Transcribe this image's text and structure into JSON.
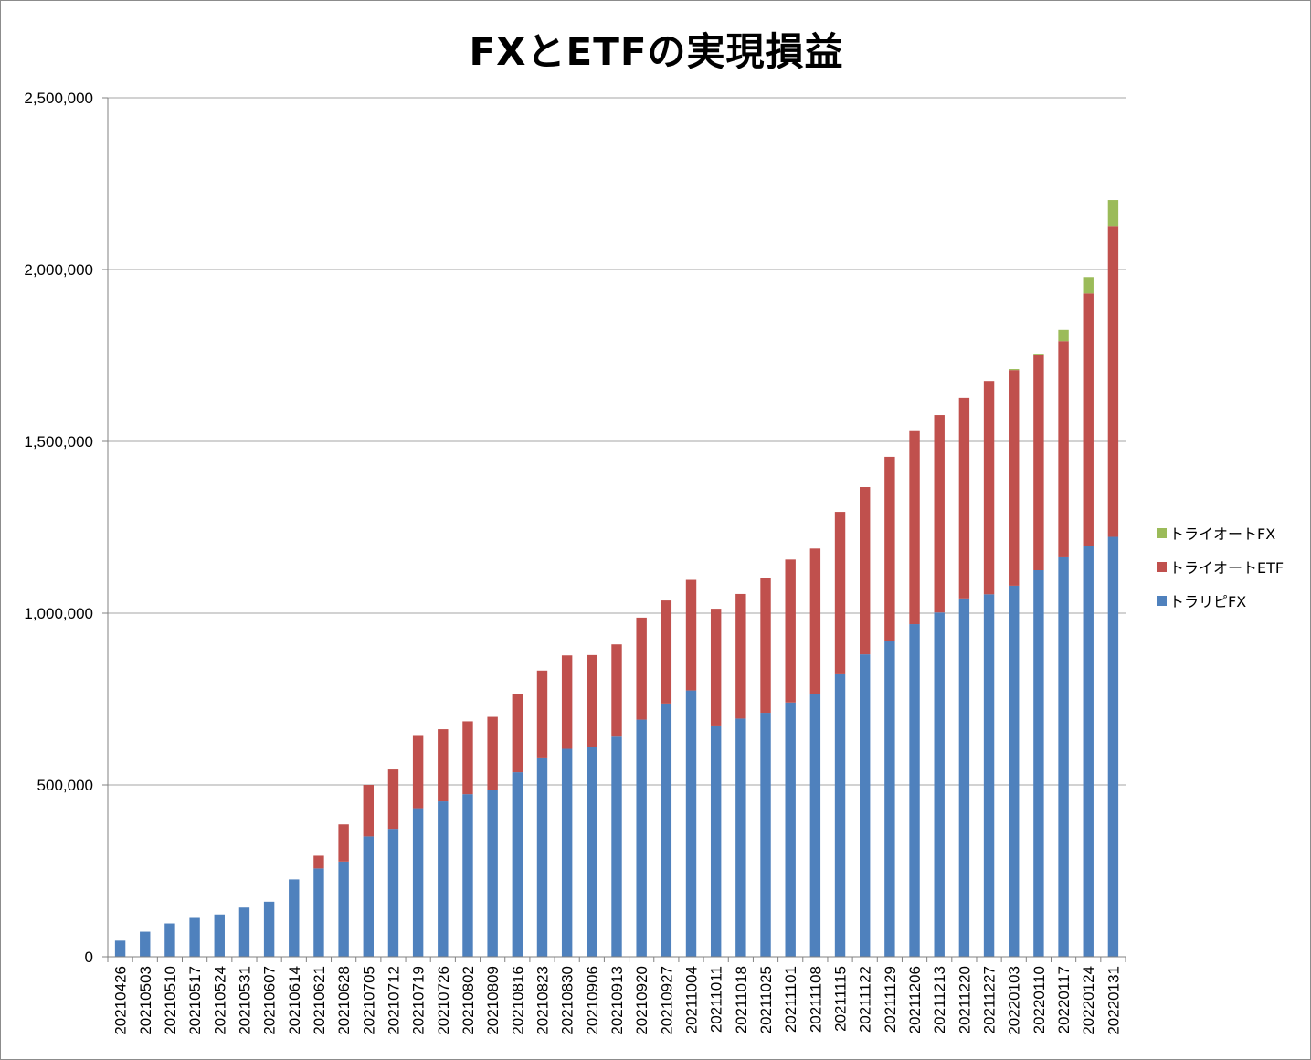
{
  "chart_data": {
    "type": "bar",
    "stacked": true,
    "title": "FXとETFの実現損益",
    "xlabel": "",
    "ylabel": "",
    "ylim": [
      0,
      2500000
    ],
    "yticks": [
      0,
      500000,
      1000000,
      1500000,
      2000000,
      2500000
    ],
    "ytick_labels": [
      "0",
      "500,000",
      "1,000,000",
      "1,500,000",
      "2,000,000",
      "2,500,000"
    ],
    "grid": true,
    "legend_position": "right",
    "categories": [
      "20210426",
      "20210503",
      "20210510",
      "20210517",
      "20210524",
      "20210531",
      "20210607",
      "20210614",
      "20210621",
      "20210628",
      "20210705",
      "20210712",
      "20210719",
      "20210726",
      "20210802",
      "20210809",
      "20210816",
      "20210823",
      "20210830",
      "20210906",
      "20210913",
      "20210920",
      "20210927",
      "20211004",
      "20211011",
      "20211018",
      "20211025",
      "20211101",
      "20211108",
      "20211115",
      "20211122",
      "20211129",
      "20211206",
      "20211213",
      "20211220",
      "20211227",
      "20220103",
      "20220110",
      "20220117",
      "20220124",
      "20220131"
    ],
    "series": [
      {
        "name": "トラリピFX",
        "color": "#4f81bd",
        "values": [
          47000,
          73000,
          97000,
          113000,
          123000,
          143000,
          160000,
          225000,
          257000,
          277000,
          350000,
          372000,
          432000,
          452000,
          473000,
          485000,
          537000,
          580000,
          605000,
          610000,
          643000,
          690000,
          737000,
          775000,
          673000,
          693000,
          710000,
          740000,
          765000,
          822000,
          880000,
          920000,
          968000,
          1002000,
          1043000,
          1055000,
          1080000,
          1125000,
          1165000,
          1195000,
          1222000
        ]
      },
      {
        "name": "トライオートETF",
        "color": "#c0504d",
        "values": [
          0,
          0,
          0,
          0,
          0,
          0,
          0,
          0,
          37000,
          108000,
          150000,
          173000,
          213000,
          210000,
          212000,
          213000,
          227000,
          253000,
          272000,
          268000,
          266000,
          297000,
          300000,
          322000,
          340000,
          363000,
          392000,
          416000,
          423000,
          473000,
          487000,
          535000,
          562000,
          575000,
          585000,
          620000,
          627000,
          625000,
          627000,
          735000,
          905000
        ]
      },
      {
        "name": "トライオートFX",
        "color": "#9bbb59",
        "values": [
          0,
          0,
          0,
          0,
          0,
          0,
          0,
          0,
          0,
          0,
          0,
          0,
          0,
          0,
          0,
          0,
          0,
          0,
          0,
          0,
          0,
          0,
          0,
          0,
          0,
          0,
          0,
          0,
          0,
          0,
          0,
          0,
          0,
          0,
          0,
          0,
          3000,
          5000,
          33000,
          48000,
          75000
        ]
      }
    ]
  }
}
